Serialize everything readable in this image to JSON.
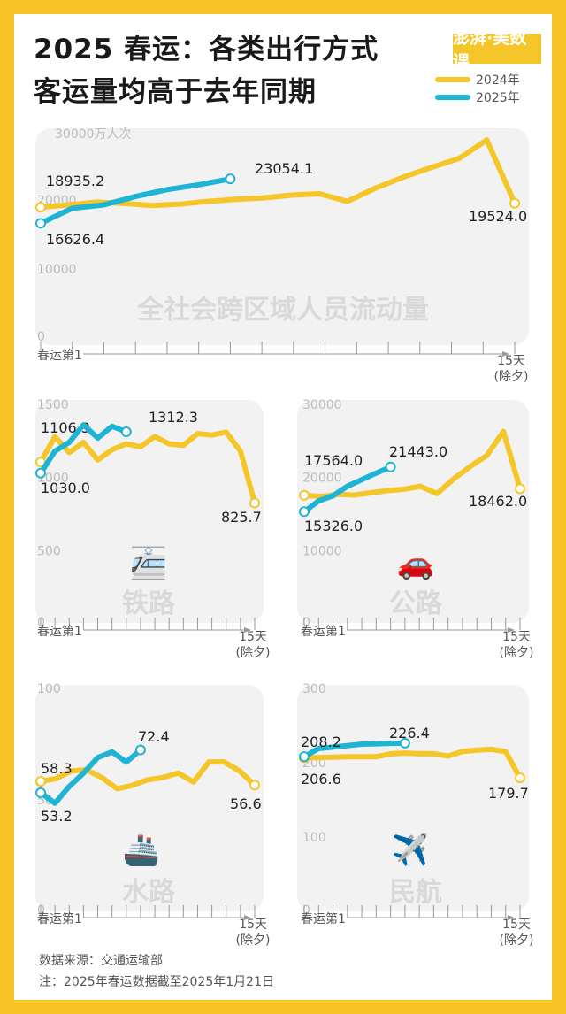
{
  "header": {
    "title_line1": "2025 春运：各类出行方式",
    "title_line2": "客运量均高于去年同期",
    "brand": "澎湃·美数课"
  },
  "legend": [
    {
      "label": "2024年",
      "color": "#f5c62a"
    },
    {
      "label": "2025年",
      "color": "#1fb3d4"
    }
  ],
  "footer": {
    "source": "数据来源：交通运输部",
    "note": "注：2025年春运数据截至2025年1月21日"
  },
  "chart_data": [
    {
      "type": "line",
      "title": "全社会跨区域人员流动量",
      "unit_label": "30000万人次",
      "yticks": [
        "0",
        "10000",
        "20000"
      ],
      "ylim": [
        0,
        30000
      ],
      "x_start_label": "春运第1",
      "x_end_label": "15天",
      "x_end_sub": "(除夕)",
      "series": [
        {
          "name": "2024年",
          "color": "#f5c62a",
          "start_label": "18935.2",
          "end_label": "19524.0",
          "values": [
            18935.2,
            19300,
            19700,
            19500,
            19200,
            19400,
            19800,
            20100,
            20300,
            20700,
            20900,
            19800,
            21700,
            23300,
            24700,
            26000,
            28700,
            19524.0
          ]
        },
        {
          "name": "2025年",
          "color": "#1fb3d4",
          "start_label": "16626.4",
          "end_label": "23054.1",
          "values": [
            16626.4,
            18800,
            19300,
            20500,
            21500,
            22200,
            23054.1
          ]
        }
      ]
    },
    {
      "type": "line",
      "title": "铁路",
      "icon": "🚈",
      "yticks": [
        "0",
        "500",
        "1000",
        "1500"
      ],
      "ylim": [
        0,
        1500
      ],
      "x_start_label": "春运第1",
      "x_end_label": "15天",
      "x_end_sub": "(除夕)",
      "series": [
        {
          "name": "2024年",
          "color": "#f5c62a",
          "start_label": "1106.3",
          "end_label": "825.7",
          "values": [
            1106.3,
            1280,
            1170,
            1240,
            1120,
            1190,
            1230,
            1210,
            1280,
            1230,
            1220,
            1300,
            1290,
            1310,
            1180,
            825.7
          ]
        },
        {
          "name": "2025年",
          "color": "#1fb3d4",
          "start_label": "1030.0",
          "end_label": "1312.3",
          "values": [
            1030.0,
            1180,
            1240,
            1360,
            1270,
            1350,
            1312.3
          ]
        }
      ]
    },
    {
      "type": "line",
      "title": "公路",
      "icon": "🚗",
      "yticks": [
        "0",
        "10000",
        "20000",
        "30000"
      ],
      "ylim": [
        0,
        30000
      ],
      "x_start_label": "春运第1",
      "x_end_label": "15天",
      "x_end_sub": "(除夕)",
      "series": [
        {
          "name": "2024年",
          "color": "#f5c62a",
          "start_label": "17564.0",
          "end_label": "18462.0",
          "values": [
            17564.0,
            17400,
            17700,
            17600,
            17900,
            18200,
            18400,
            18800,
            17800,
            19800,
            21500,
            23000,
            26300,
            18462.0
          ]
        },
        {
          "name": "2025年",
          "color": "#1fb3d4",
          "start_label": "15326.0",
          "end_label": "21443.0",
          "values": [
            15326.0,
            16800,
            17500,
            18800,
            19700,
            20600,
            21443.0
          ]
        }
      ]
    },
    {
      "type": "line",
      "title": "水路",
      "icon": "🚢",
      "yticks": [
        "0",
        "50",
        "100"
      ],
      "ylim": [
        0,
        100
      ],
      "x_start_label": "春运第1",
      "x_end_label": "15天",
      "x_end_sub": "(除夕)",
      "series": [
        {
          "name": "2024年",
          "color": "#f5c62a",
          "start_label": "58.3",
          "end_label": "56.6",
          "values": [
            58.3,
            59.5,
            63,
            63.5,
            60,
            55,
            56.5,
            59,
            60,
            62,
            58,
            67,
            67,
            63,
            56.6
          ]
        },
        {
          "name": "2025年",
          "color": "#1fb3d4",
          "start_label": "53.2",
          "end_label": "72.4",
          "values": [
            53.2,
            48.5,
            56,
            62,
            69,
            71.5,
            67,
            72.4
          ]
        }
      ]
    },
    {
      "type": "line",
      "title": "民航",
      "icon": "✈️",
      "yticks": [
        "0",
        "100",
        "200",
        "300"
      ],
      "ylim": [
        0,
        300
      ],
      "x_start_label": "春运第1",
      "x_end_label": "15天",
      "x_end_sub": "(除夕)",
      "series": [
        {
          "name": "2024年",
          "color": "#f5c62a",
          "start_label": "206.6",
          "end_label": "179.7",
          "values": [
            206.6,
            207,
            207.5,
            208,
            208,
            208,
            212,
            213,
            212,
            212,
            209,
            215,
            217,
            218,
            215,
            179.7
          ]
        },
        {
          "name": "2025年",
          "color": "#1fb3d4",
          "start_label": "208.2",
          "end_label": "226.4",
          "values": [
            208.2,
            219,
            221,
            223,
            225,
            225.5,
            226,
            226.4
          ]
        }
      ]
    }
  ]
}
